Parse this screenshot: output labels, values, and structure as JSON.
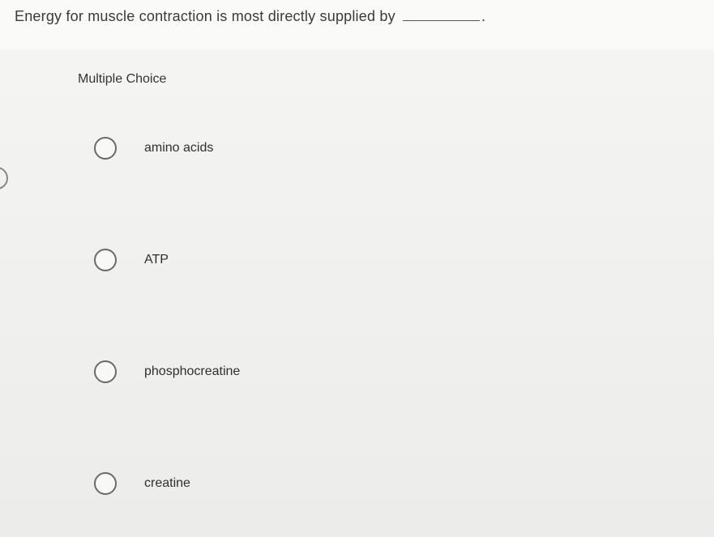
{
  "question": {
    "prefix": "Energy for muscle contraction is most directly supplied by",
    "suffix": "."
  },
  "section_label": "Multiple Choice",
  "options": [
    {
      "label": "amino acids"
    },
    {
      "label": "ATP"
    },
    {
      "label": "phosphocreatine"
    },
    {
      "label": "creatine"
    }
  ],
  "colors": {
    "text": "#3a3a3a",
    "radio_border": "#6a6a6a",
    "background_top": "#fafaf8",
    "background_bottom": "#ececea"
  }
}
